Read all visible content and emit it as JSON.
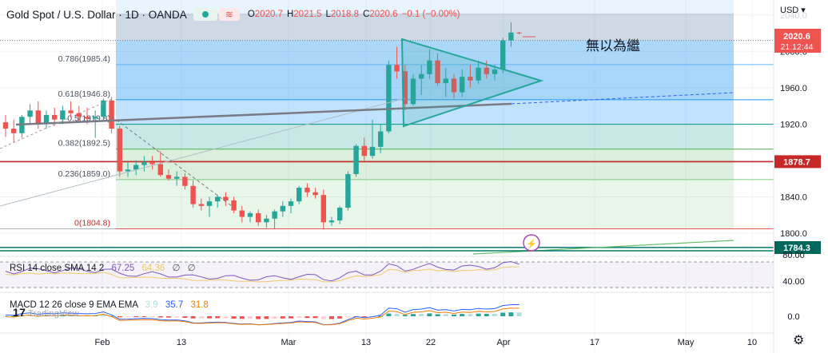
{
  "header": {
    "title": "Gold Spot / U.S. Dollar · 1D · OANDA",
    "open_label": "O",
    "open": "2020.7",
    "high_label": "H",
    "high": "2021.5",
    "low_label": "L",
    "low": "2018.8",
    "close_label": "C",
    "close": "2020.6",
    "change": "−0.1 (−0.00%)"
  },
  "currency": "USD",
  "annotation_text": "無以為繼",
  "price_tag": {
    "price": "2020.6",
    "countdown": "21:12:44"
  },
  "level_tags": [
    "1878.7",
    "1784.3"
  ],
  "rsi": {
    "label": "RSI 14 close SMA 14 2",
    "value": "67.25",
    "sma": "64.36",
    "x1": "∅",
    "x2": "∅"
  },
  "macd": {
    "label": "MACD 12 26 close 9 EMA EMA",
    "hist": "3.9",
    "macd": "35.7",
    "signal": "31.8"
  },
  "watermark": "TradingView",
  "colors": {
    "up": "#26a69a",
    "down": "#ef5350",
    "accent": "#2962ff"
  },
  "chart_data": {
    "type": "candlestick",
    "instrument": "Gold Spot / U.S. Dollar",
    "interval": "1D",
    "ylim": [
      1780,
      2040
    ],
    "yticks": [
      1800,
      1840,
      1880,
      1920,
      1960,
      2000,
      2040
    ],
    "xtick_labels": [
      "Feb",
      "13",
      "Mar",
      "13",
      "22",
      "Apr",
      "17",
      "May",
      "10"
    ],
    "fibonacci": [
      {
        "ratio": "0.786",
        "price": 1985.4,
        "label": "0.786(1985.4)"
      },
      {
        "ratio": "0.618",
        "price": 1946.8,
        "label": "0.618(1946.8)"
      },
      {
        "ratio": "0.5",
        "price": 1919.8,
        "label": "0.5(1919.8)"
      },
      {
        "ratio": "0.382",
        "price": 1892.5,
        "label": "0.382(1892.5)"
      },
      {
        "ratio": "0.236",
        "price": 1859.0,
        "label": "0.236(1859.0)"
      },
      {
        "ratio": "0",
        "price": 1804.8,
        "label": "0(1804.8)"
      }
    ],
    "horizontal_levels": [
      1878.7,
      1784.3
    ],
    "candles": [
      {
        "o": 1922,
        "h": 1930,
        "l": 1906,
        "c": 1915
      },
      {
        "o": 1915,
        "h": 1925,
        "l": 1900,
        "c": 1910
      },
      {
        "o": 1910,
        "h": 1930,
        "l": 1905,
        "c": 1928
      },
      {
        "o": 1928,
        "h": 1942,
        "l": 1920,
        "c": 1935
      },
      {
        "o": 1935,
        "h": 1945,
        "l": 1915,
        "c": 1920
      },
      {
        "o": 1920,
        "h": 1935,
        "l": 1915,
        "c": 1930
      },
      {
        "o": 1930,
        "h": 1938,
        "l": 1918,
        "c": 1925
      },
      {
        "o": 1925,
        "h": 1940,
        "l": 1920,
        "c": 1935
      },
      {
        "o": 1935,
        "h": 1945,
        "l": 1928,
        "c": 1932
      },
      {
        "o": 1932,
        "h": 1940,
        "l": 1922,
        "c": 1928
      },
      {
        "o": 1928,
        "h": 1938,
        "l": 1920,
        "c": 1926
      },
      {
        "o": 1926,
        "h": 1935,
        "l": 1905,
        "c": 1928
      },
      {
        "o": 1928,
        "h": 1948,
        "l": 1925,
        "c": 1946
      },
      {
        "o": 1946,
        "h": 1950,
        "l": 1910,
        "c": 1915
      },
      {
        "o": 1915,
        "h": 1918,
        "l": 1862,
        "c": 1868
      },
      {
        "o": 1868,
        "h": 1878,
        "l": 1862,
        "c": 1870
      },
      {
        "o": 1870,
        "h": 1880,
        "l": 1864,
        "c": 1875
      },
      {
        "o": 1875,
        "h": 1885,
        "l": 1868,
        "c": 1878
      },
      {
        "o": 1878,
        "h": 1885,
        "l": 1870,
        "c": 1876
      },
      {
        "o": 1876,
        "h": 1890,
        "l": 1862,
        "c": 1864
      },
      {
        "o": 1864,
        "h": 1870,
        "l": 1858,
        "c": 1860
      },
      {
        "o": 1860,
        "h": 1868,
        "l": 1852,
        "c": 1862
      },
      {
        "o": 1862,
        "h": 1866,
        "l": 1848,
        "c": 1852
      },
      {
        "o": 1852,
        "h": 1858,
        "l": 1828,
        "c": 1832
      },
      {
        "o": 1832,
        "h": 1838,
        "l": 1825,
        "c": 1830
      },
      {
        "o": 1830,
        "h": 1840,
        "l": 1818,
        "c": 1835
      },
      {
        "o": 1835,
        "h": 1842,
        "l": 1828,
        "c": 1840
      },
      {
        "o": 1840,
        "h": 1845,
        "l": 1830,
        "c": 1836
      },
      {
        "o": 1836,
        "h": 1840,
        "l": 1822,
        "c": 1825
      },
      {
        "o": 1825,
        "h": 1830,
        "l": 1812,
        "c": 1818
      },
      {
        "o": 1818,
        "h": 1824,
        "l": 1812,
        "c": 1822
      },
      {
        "o": 1822,
        "h": 1826,
        "l": 1808,
        "c": 1812
      },
      {
        "o": 1812,
        "h": 1820,
        "l": 1806,
        "c": 1816
      },
      {
        "o": 1816,
        "h": 1826,
        "l": 1805,
        "c": 1824
      },
      {
        "o": 1824,
        "h": 1835,
        "l": 1818,
        "c": 1830
      },
      {
        "o": 1830,
        "h": 1838,
        "l": 1822,
        "c": 1835
      },
      {
        "o": 1835,
        "h": 1852,
        "l": 1832,
        "c": 1850
      },
      {
        "o": 1850,
        "h": 1855,
        "l": 1840,
        "c": 1845
      },
      {
        "o": 1845,
        "h": 1850,
        "l": 1838,
        "c": 1842
      },
      {
        "o": 1842,
        "h": 1848,
        "l": 1805,
        "c": 1812
      },
      {
        "o": 1812,
        "h": 1818,
        "l": 1808,
        "c": 1814
      },
      {
        "o": 1814,
        "h": 1830,
        "l": 1810,
        "c": 1828
      },
      {
        "o": 1828,
        "h": 1868,
        "l": 1825,
        "c": 1865
      },
      {
        "o": 1865,
        "h": 1898,
        "l": 1862,
        "c": 1896
      },
      {
        "o": 1896,
        "h": 1905,
        "l": 1880,
        "c": 1885
      },
      {
        "o": 1885,
        "h": 1925,
        "l": 1882,
        "c": 1895
      },
      {
        "o": 1895,
        "h": 1920,
        "l": 1888,
        "c": 1912
      },
      {
        "o": 1912,
        "h": 1990,
        "l": 1910,
        "c": 1985
      },
      {
        "o": 1985,
        "h": 2005,
        "l": 1970,
        "c": 1978
      },
      {
        "o": 1978,
        "h": 1985,
        "l": 1935,
        "c": 1942
      },
      {
        "o": 1942,
        "h": 1975,
        "l": 1940,
        "c": 1970
      },
      {
        "o": 1970,
        "h": 1985,
        "l": 1952,
        "c": 1975
      },
      {
        "o": 1975,
        "h": 2002,
        "l": 1970,
        "c": 1990
      },
      {
        "o": 1990,
        "h": 1998,
        "l": 1962,
        "c": 1965
      },
      {
        "o": 1965,
        "h": 1982,
        "l": 1950,
        "c": 1970
      },
      {
        "o": 1970,
        "h": 1975,
        "l": 1948,
        "c": 1955
      },
      {
        "o": 1955,
        "h": 1980,
        "l": 1950,
        "c": 1972
      },
      {
        "o": 1972,
        "h": 1985,
        "l": 1960,
        "c": 1968
      },
      {
        "o": 1968,
        "h": 1990,
        "l": 1964,
        "c": 1982
      },
      {
        "o": 1982,
        "h": 1990,
        "l": 1970,
        "c": 1975
      },
      {
        "o": 1975,
        "h": 1985,
        "l": 1968,
        "c": 1980
      },
      {
        "o": 1980,
        "h": 2015,
        "l": 1976,
        "c": 2012
      },
      {
        "o": 2012,
        "h": 2032,
        "l": 2005,
        "c": 2020.7
      },
      {
        "o": 2020.7,
        "h": 2021.5,
        "l": 2018.8,
        "c": 2020.6
      }
    ],
    "rsi": {
      "ylim": [
        20,
        85
      ],
      "yticks": [
        40,
        80
      ],
      "value": 67.25
    },
    "macd": {
      "yticks": [
        0
      ],
      "hist": 3.9,
      "macd": 35.7,
      "signal": 31.8
    }
  }
}
